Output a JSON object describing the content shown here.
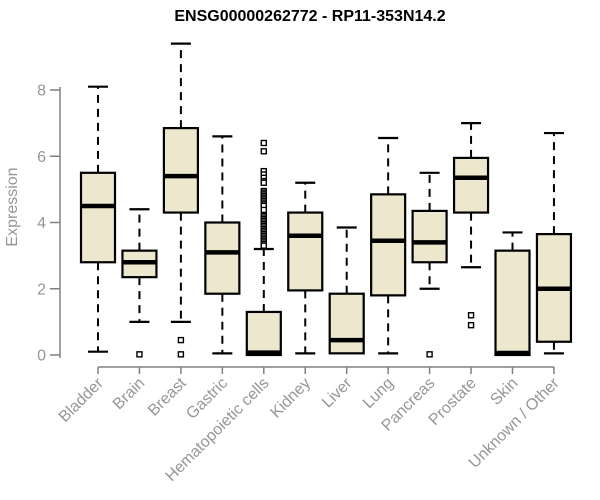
{
  "chart_data": {
    "type": "boxplot",
    "title": "ENSG00000262772 - RP11-353N14.2",
    "ylabel": "Expression",
    "xlabel": "",
    "ylim": [
      0,
      8
    ],
    "yticks": [
      0,
      2,
      4,
      6,
      8
    ],
    "grid": false,
    "legend": false,
    "categories": [
      "Bladder",
      "Brain",
      "Breast",
      "Gastric",
      "Hematopoietic cells",
      "Kidney",
      "Liver",
      "Lung",
      "Pancreas",
      "Prostate",
      "Skin",
      "Unknown / Other"
    ],
    "boxes": [
      {
        "category": "Bladder",
        "whisker_low": 0.1,
        "q1": 2.8,
        "median": 4.5,
        "q3": 5.5,
        "whisker_high": 8.1,
        "outliers": []
      },
      {
        "category": "Brain",
        "whisker_low": 1.0,
        "q1": 2.35,
        "median": 2.8,
        "q3": 3.15,
        "whisker_high": 4.4,
        "outliers": [
          0.02
        ]
      },
      {
        "category": "Breast",
        "whisker_low": 1.0,
        "q1": 4.3,
        "median": 5.4,
        "q3": 6.85,
        "whisker_high": 9.4,
        "outliers": [
          0.45,
          0.02
        ]
      },
      {
        "category": "Gastric",
        "whisker_low": 0.05,
        "q1": 1.85,
        "median": 3.1,
        "q3": 4.0,
        "whisker_high": 6.6,
        "outliers": []
      },
      {
        "category": "Hematopoietic cells",
        "whisker_low": 0.0,
        "q1": 0.0,
        "median": 0.07,
        "q3": 1.3,
        "whisker_high": 3.2,
        "outliers": [
          6.4,
          6.15,
          5.55,
          5.45,
          5.35,
          5.25,
          5.2,
          4.95,
          4.9,
          4.85,
          4.8,
          4.75,
          4.7,
          4.65,
          4.6,
          4.55,
          4.5,
          4.38,
          4.2,
          4.15,
          4.1,
          4.05,
          4.0,
          3.95,
          3.9,
          3.85,
          3.8,
          3.75,
          3.7,
          3.65,
          3.6,
          3.55,
          3.5,
          3.45,
          3.4,
          3.35,
          3.3
        ]
      },
      {
        "category": "Kidney",
        "whisker_low": 0.05,
        "q1": 1.95,
        "median": 3.6,
        "q3": 4.3,
        "whisker_high": 5.2,
        "outliers": []
      },
      {
        "category": "Liver",
        "whisker_low": 0.05,
        "q1": 0.05,
        "median": 0.45,
        "q3": 1.85,
        "whisker_high": 3.85,
        "outliers": []
      },
      {
        "category": "Lung",
        "whisker_low": 0.05,
        "q1": 1.8,
        "median": 3.45,
        "q3": 4.85,
        "whisker_high": 6.55,
        "outliers": []
      },
      {
        "category": "Pancreas",
        "whisker_low": 2.0,
        "q1": 2.8,
        "median": 3.4,
        "q3": 4.35,
        "whisker_high": 5.5,
        "outliers": [
          0.02
        ]
      },
      {
        "category": "Prostate",
        "whisker_low": 2.65,
        "q1": 4.3,
        "median": 5.35,
        "q3": 5.95,
        "whisker_high": 7.0,
        "outliers": [
          1.2,
          0.9
        ]
      },
      {
        "category": "Skin",
        "whisker_low": 0.0,
        "q1": 0.0,
        "median": 0.06,
        "q3": 3.15,
        "whisker_high": 3.7,
        "outliers": []
      },
      {
        "category": "Unknown / Other",
        "whisker_low": 0.05,
        "q1": 0.4,
        "median": 2.0,
        "q3": 3.65,
        "whisker_high": 6.7,
        "outliers": []
      }
    ],
    "colors": {
      "box_fill": "#EDE8CD",
      "box_stroke": "#000000",
      "median": "#000000",
      "whisker": "#000000",
      "outlier_stroke": "#000000",
      "axis_line": "#808080",
      "axis_text": "#969696",
      "title_color": "#000000",
      "background": "#FFFFFF"
    }
  }
}
